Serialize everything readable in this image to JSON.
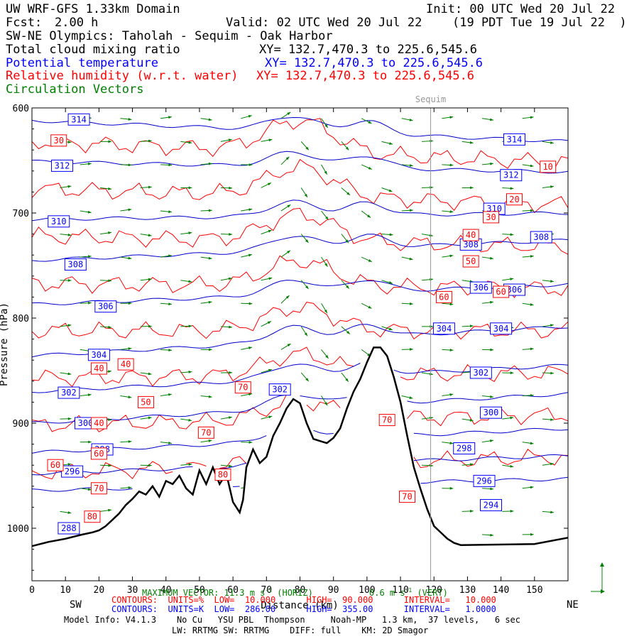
{
  "header": {
    "model_title": "UW WRF-GFS 1.33km Domain",
    "init": "Init: 00 UTC Wed 20 Jul 22",
    "fcst_label": "Fcst:",
    "fcst_value": "2.00 h",
    "valid": "Valid: 02 UTC Wed 20 Jul 22",
    "valid_local": "(19 PDT Tue 19 Jul 22  )",
    "cross_section": "SW-NE Olympics: Taholah - Sequim - Oak Harbor",
    "fields": [
      {
        "name": "Total cloud mixing ratio",
        "xy": "XY= 132.7,470.3 to 225.6,545.6",
        "color": "#000000"
      },
      {
        "name": "Potential temperature",
        "xy": "XY= 132.7,470.3 to 225.6,545.6",
        "color": "#0000ff"
      },
      {
        "name": "Relative humidity (w.r.t. water)",
        "xy": "XY= 132.7,470.3 to 225.6,545.6",
        "color": "#ff0000"
      },
      {
        "name": "Circulation Vectors",
        "xy": "",
        "color": "#007f00"
      }
    ]
  },
  "chart_data": {
    "type": "cross-section",
    "xlabel": "Distance (km)",
    "ylabel": "Pressure (hPa)",
    "xlim": [
      0,
      160
    ],
    "ylim": [
      1050,
      600
    ],
    "x_ticks": [
      0,
      10,
      20,
      30,
      40,
      50,
      60,
      70,
      80,
      90,
      100,
      110,
      120,
      130,
      140,
      150
    ],
    "y_ticks": [
      600,
      700,
      800,
      900,
      1000
    ],
    "y_tick_labels": [
      "600",
      "700",
      "800",
      "900",
      "1000"
    ],
    "left_end": "SW",
    "right_end": "NE",
    "location_marker": {
      "name": "Sequim",
      "x": 119
    },
    "terrain_pressure": [
      [
        0,
        1017
      ],
      [
        5,
        1013
      ],
      [
        10,
        1010
      ],
      [
        15,
        1006
      ],
      [
        18,
        1004
      ],
      [
        20,
        1002
      ],
      [
        22,
        998
      ],
      [
        24,
        992
      ],
      [
        26,
        986
      ],
      [
        28,
        978
      ],
      [
        30,
        972
      ],
      [
        32,
        965
      ],
      [
        34,
        968
      ],
      [
        36,
        960
      ],
      [
        38,
        970
      ],
      [
        40,
        955
      ],
      [
        42,
        958
      ],
      [
        44,
        950
      ],
      [
        46,
        962
      ],
      [
        48,
        968
      ],
      [
        50,
        945
      ],
      [
        52,
        958
      ],
      [
        54,
        942
      ],
      [
        56,
        958
      ],
      [
        58,
        948
      ],
      [
        60,
        975
      ],
      [
        62,
        985
      ],
      [
        63,
        973
      ],
      [
        64,
        942
      ],
      [
        66,
        925
      ],
      [
        68,
        938
      ],
      [
        70,
        932
      ],
      [
        72,
        912
      ],
      [
        74,
        900
      ],
      [
        76,
        886
      ],
      [
        78,
        877
      ],
      [
        80,
        881
      ],
      [
        82,
        900
      ],
      [
        84,
        915
      ],
      [
        86,
        917
      ],
      [
        88,
        919
      ],
      [
        90,
        914
      ],
      [
        92,
        905
      ],
      [
        94,
        886
      ],
      [
        96,
        870
      ],
      [
        98,
        858
      ],
      [
        100,
        842
      ],
      [
        102,
        828
      ],
      [
        104,
        828
      ],
      [
        106,
        836
      ],
      [
        108,
        856
      ],
      [
        110,
        880
      ],
      [
        112,
        912
      ],
      [
        114,
        942
      ],
      [
        116,
        963
      ],
      [
        118,
        982
      ],
      [
        120,
        998
      ],
      [
        122,
        1004
      ],
      [
        124,
        1010
      ],
      [
        126,
        1014
      ],
      [
        128,
        1016
      ],
      [
        150,
        1015
      ],
      [
        160,
        1009
      ]
    ],
    "theta_contours_K": [
      {
        "label": 314,
        "p_left": 612,
        "p_right": 632
      },
      {
        "label": 312,
        "p_left": 651,
        "p_right": 661
      },
      {
        "label": 310,
        "p_left": 706,
        "p_right": 700
      },
      {
        "label": 308,
        "p_left": 745,
        "p_right": 726
      },
      {
        "label": 306,
        "p_left": 787,
        "p_right": 768
      },
      {
        "label": 304,
        "p_left": 836,
        "p_right": 808
      },
      {
        "label": 302,
        "p_left": 870,
        "p_right": 845
      },
      {
        "label": 300,
        "p_left": 900,
        "p_right": 872
      },
      {
        "label": 298,
        "p_left": 928,
        "p_right": 905
      },
      {
        "label": 296,
        "p_left": 948,
        "p_right": 931
      },
      {
        "label": 294,
        "p_left": 964,
        "p_right": 953
      }
    ],
    "rh_contours_percent": [
      10,
      20,
      30,
      40,
      50,
      60,
      70,
      80
    ],
    "contour_labels": [
      {
        "text": "314",
        "kind": "theta",
        "x": 14,
        "p": 611
      },
      {
        "text": "314",
        "kind": "theta",
        "x": 144,
        "p": 630
      },
      {
        "text": "312",
        "kind": "theta",
        "x": 9,
        "p": 655
      },
      {
        "text": "312",
        "kind": "theta",
        "x": 143,
        "p": 664
      },
      {
        "text": "310",
        "kind": "theta",
        "x": 8,
        "p": 708
      },
      {
        "text": "310",
        "kind": "theta",
        "x": 138,
        "p": 696
      },
      {
        "text": "308",
        "kind": "theta",
        "x": 13,
        "p": 749
      },
      {
        "text": "308",
        "kind": "theta",
        "x": 131,
        "p": 730
      },
      {
        "text": "308",
        "kind": "theta",
        "x": 152,
        "p": 723
      },
      {
        "text": "306",
        "kind": "theta",
        "x": 22,
        "p": 789
      },
      {
        "text": "306",
        "kind": "theta",
        "x": 134,
        "p": 771
      },
      {
        "text": "306",
        "kind": "theta",
        "x": 144,
        "p": 773
      },
      {
        "text": "304",
        "kind": "theta",
        "x": 20,
        "p": 835
      },
      {
        "text": "304",
        "kind": "theta",
        "x": 123,
        "p": 810
      },
      {
        "text": "304",
        "kind": "theta",
        "x": 140,
        "p": 810
      },
      {
        "text": "302",
        "kind": "theta",
        "x": 11,
        "p": 871
      },
      {
        "text": "302",
        "kind": "theta",
        "x": 74,
        "p": 868
      },
      {
        "text": "302",
        "kind": "theta",
        "x": 134,
        "p": 852
      },
      {
        "text": "300",
        "kind": "theta",
        "x": 16,
        "p": 900
      },
      {
        "text": "300",
        "kind": "theta",
        "x": 137,
        "p": 890
      },
      {
        "text": "298",
        "kind": "theta",
        "x": 21,
        "p": 925
      },
      {
        "text": "298",
        "kind": "theta",
        "x": 129,
        "p": 924
      },
      {
        "text": "296",
        "kind": "theta",
        "x": 12,
        "p": 946
      },
      {
        "text": "296",
        "kind": "theta",
        "x": 135,
        "p": 955
      },
      {
        "text": "294",
        "kind": "theta",
        "x": 137,
        "p": 978
      },
      {
        "text": "288",
        "kind": "theta",
        "x": 11,
        "p": 1000
      },
      {
        "text": "30",
        "kind": "rh",
        "x": 8,
        "p": 631
      },
      {
        "text": "10",
        "kind": "rh",
        "x": 154,
        "p": 656
      },
      {
        "text": "20",
        "kind": "rh",
        "x": 144,
        "p": 687
      },
      {
        "text": "30",
        "kind": "rh",
        "x": 137,
        "p": 704
      },
      {
        "text": "40",
        "kind": "rh",
        "x": 131,
        "p": 721
      },
      {
        "text": "50",
        "kind": "rh",
        "x": 131,
        "p": 746
      },
      {
        "text": "60",
        "kind": "rh",
        "x": 123,
        "p": 780
      },
      {
        "text": "60",
        "kind": "rh",
        "x": 140,
        "p": 775
      },
      {
        "text": "40",
        "kind": "rh",
        "x": 20,
        "p": 848
      },
      {
        "text": "40",
        "kind": "rh",
        "x": 28,
        "p": 844
      },
      {
        "text": "70",
        "kind": "rh",
        "x": 63,
        "p": 866
      },
      {
        "text": "50",
        "kind": "rh",
        "x": 34,
        "p": 880
      },
      {
        "text": "40",
        "kind": "rh",
        "x": 20,
        "p": 900
      },
      {
        "text": "70",
        "kind": "rh",
        "x": 52,
        "p": 909
      },
      {
        "text": "70",
        "kind": "rh",
        "x": 106,
        "p": 897
      },
      {
        "text": "60",
        "kind": "rh",
        "x": 20,
        "p": 929
      },
      {
        "text": "60",
        "kind": "rh",
        "x": 7,
        "p": 940
      },
      {
        "text": "80",
        "kind": "rh",
        "x": 57,
        "p": 949
      },
      {
        "text": "70",
        "kind": "rh",
        "x": 20,
        "p": 962
      },
      {
        "text": "70",
        "kind": "rh",
        "x": 112,
        "p": 970
      },
      {
        "text": "80",
        "kind": "rh",
        "x": 18,
        "p": 989
      }
    ]
  },
  "footer": {
    "max_vector": "MAXIMUM VECTOR: 11.3 m s",
    "max_vector_unit": "-1",
    "max_vector_tail": " (HORIZ)",
    "vert_vector": "0.6 m s",
    "vert_vector_unit": "-1",
    "vert_vector_tail": " (VERT)",
    "rh_line": "CONTOURS:  UNITS=%  LOW=  10.000      HIGH=  90.000      INTERVAL=   10.000",
    "theta_line": "CONTOURS:  UNITS=K  LOW=  286.00      HIGH=  355.00      INTERVAL=   1.0000",
    "model_info": "Model Info: V4.1.3    No Cu   YSU PBL  Thompson     Noah-MP   1.3 km,  37 levels,   6 sec",
    "physics": "LW: RRTMG SW: RRTMG    DIFF: full    KM: 2D Smagor"
  }
}
